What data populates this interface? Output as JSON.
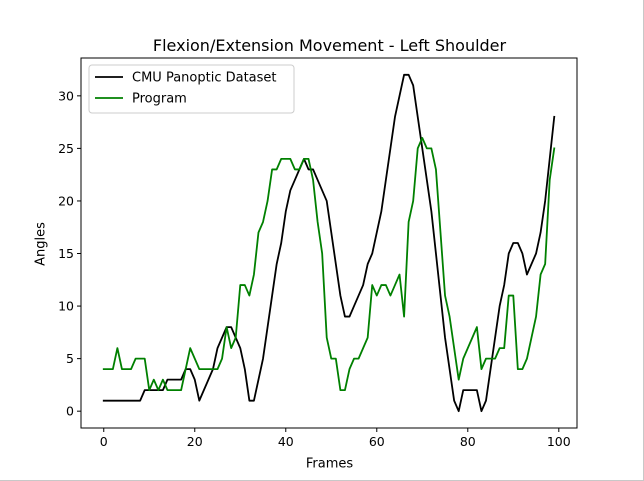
{
  "chart_data": {
    "type": "line",
    "title": "Flexion/Extension Movement - Left Shoulder",
    "xlabel": "Frames",
    "ylabel": "Angles",
    "xlim": [
      -5,
      104
    ],
    "ylim": [
      -1.6,
      33.6
    ],
    "xticks": [
      0,
      20,
      40,
      60,
      80,
      100
    ],
    "yticks": [
      0,
      5,
      10,
      15,
      20,
      25,
      30
    ],
    "grid": false,
    "legend_position": "top-left",
    "series": [
      {
        "name": "CMU Panoptic Dataset",
        "color": "#000000",
        "x": [
          0,
          1,
          2,
          3,
          4,
          5,
          6,
          7,
          8,
          9,
          10,
          11,
          12,
          13,
          14,
          15,
          16,
          17,
          18,
          19,
          20,
          21,
          22,
          23,
          24,
          25,
          26,
          27,
          28,
          29,
          30,
          31,
          32,
          33,
          34,
          35,
          36,
          37,
          38,
          39,
          40,
          41,
          42,
          43,
          44,
          45,
          46,
          47,
          48,
          49,
          50,
          51,
          52,
          53,
          54,
          55,
          56,
          57,
          58,
          59,
          60,
          61,
          62,
          63,
          64,
          65,
          66,
          67,
          68,
          69,
          70,
          71,
          72,
          73,
          74,
          75,
          76,
          77,
          78,
          79,
          80,
          81,
          82,
          83,
          84,
          85,
          86,
          87,
          88,
          89,
          90,
          91,
          92,
          93,
          94,
          95,
          96,
          97,
          98,
          99
        ],
        "y": [
          1,
          1,
          1,
          1,
          1,
          1,
          1,
          1,
          1,
          2,
          2,
          2,
          2,
          2,
          3,
          3,
          3,
          3,
          4,
          4,
          3,
          1,
          2,
          3,
          4,
          6,
          7,
          8,
          8,
          7,
          6,
          4,
          1,
          1,
          3,
          5,
          8,
          11,
          14,
          16,
          19,
          21,
          22,
          23,
          24,
          23,
          23,
          22,
          21,
          20,
          17,
          14,
          11,
          9,
          9,
          10,
          11,
          12,
          14,
          15,
          17,
          19,
          22,
          25,
          28,
          30,
          32,
          32,
          31,
          28,
          25,
          22,
          19,
          15,
          11,
          7,
          4,
          1,
          0,
          2,
          2,
          2,
          2,
          0,
          1,
          4,
          7,
          10,
          12,
          15,
          16,
          16,
          15,
          13,
          14,
          15,
          17,
          20,
          24,
          28
        ]
      },
      {
        "name": "Program",
        "color": "#008000",
        "x": [
          0,
          1,
          2,
          3,
          4,
          5,
          6,
          7,
          8,
          9,
          10,
          11,
          12,
          13,
          14,
          15,
          16,
          17,
          18,
          19,
          20,
          21,
          22,
          23,
          24,
          25,
          26,
          27,
          28,
          29,
          30,
          31,
          32,
          33,
          34,
          35,
          36,
          37,
          38,
          39,
          40,
          41,
          42,
          43,
          44,
          45,
          46,
          47,
          48,
          49,
          50,
          51,
          52,
          53,
          54,
          55,
          56,
          57,
          58,
          59,
          60,
          61,
          62,
          63,
          64,
          65,
          66,
          67,
          68,
          69,
          70,
          71,
          72,
          73,
          74,
          75,
          76,
          77,
          78,
          79,
          80,
          81,
          82,
          83,
          84,
          85,
          86,
          87,
          88,
          89,
          90,
          91,
          92,
          93,
          94,
          95,
          96,
          97,
          98,
          99
        ],
        "y": [
          4,
          4,
          4,
          6,
          4,
          4,
          4,
          5,
          5,
          5,
          2,
          3,
          2,
          3,
          2,
          2,
          2,
          2,
          4,
          6,
          5,
          4,
          4,
          4,
          4,
          4,
          5,
          8,
          6,
          7,
          12,
          12,
          11,
          13,
          17,
          18,
          20,
          23,
          23,
          24,
          24,
          24,
          23,
          23,
          24,
          24,
          22,
          18,
          15,
          7,
          5,
          5,
          2,
          2,
          4,
          5,
          5,
          6,
          7,
          12,
          11,
          12,
          12,
          11,
          12,
          13,
          9,
          18,
          20,
          25,
          26,
          25,
          25,
          23,
          17,
          11,
          9,
          6,
          3,
          5,
          6,
          7,
          8,
          4,
          5,
          5,
          5,
          6,
          6,
          11,
          11,
          4,
          4,
          5,
          7,
          9,
          13,
          14,
          22,
          25
        ]
      }
    ]
  }
}
